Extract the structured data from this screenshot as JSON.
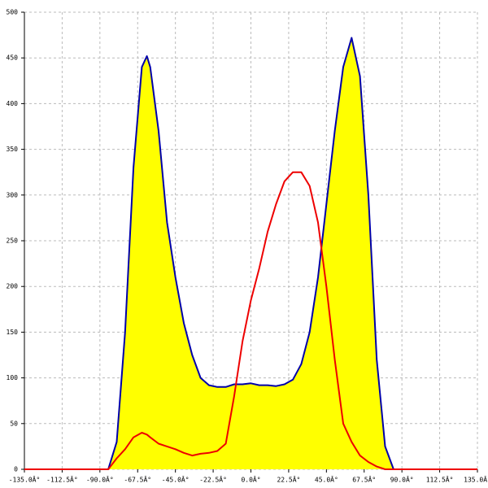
{
  "chart_data": {
    "type": "line",
    "x": [
      -135,
      -85,
      -80,
      -75,
      -70,
      -65,
      -62,
      -60,
      -55,
      -50,
      -45,
      -40,
      -35,
      -30,
      -25,
      -20,
      -15,
      -10,
      -5,
      0,
      5,
      10,
      15,
      20,
      25,
      30,
      35,
      40,
      45,
      50,
      55,
      60,
      65,
      70,
      75,
      80,
      85,
      135
    ],
    "series": [
      {
        "color": "#0000aa",
        "fill": "#ffff00",
        "values": [
          0,
          0,
          30,
          150,
          330,
          440,
          452,
          440,
          370,
          270,
          210,
          160,
          125,
          100,
          92,
          90,
          90,
          93,
          93,
          94,
          92,
          92,
          91,
          93,
          98,
          115,
          150,
          210,
          290,
          370,
          440,
          472,
          430,
          300,
          120,
          25,
          0,
          0
        ]
      },
      {
        "color": "#ee0000",
        "values": [
          0,
          0,
          12,
          22,
          35,
          40,
          38,
          35,
          28,
          25,
          22,
          18,
          15,
          17,
          18,
          20,
          28,
          80,
          140,
          185,
          220,
          260,
          290,
          315,
          325,
          325,
          310,
          270,
          200,
          120,
          50,
          30,
          15,
          8,
          3,
          0,
          0,
          0
        ]
      }
    ],
    "xlim": [
      -135,
      135
    ],
    "xticks": [
      {
        "value": -135,
        "label": "-135.0Â°"
      },
      {
        "value": -112.5,
        "label": "-112.5Â°"
      },
      {
        "value": -90,
        "label": "-90.0Â°"
      },
      {
        "value": -67.5,
        "label": "-67.5Â°"
      },
      {
        "value": -45,
        "label": "-45.0Â°"
      },
      {
        "value": -22.5,
        "label": "-22.5Â°"
      },
      {
        "value": 0,
        "label": "0.0Â°"
      },
      {
        "value": 22.5,
        "label": "22.5Â°"
      },
      {
        "value": 45,
        "label": "45.0Â°"
      },
      {
        "value": 67.5,
        "label": "67.5Â°"
      },
      {
        "value": 90,
        "label": "90.0Â°"
      },
      {
        "value": 112.5,
        "label": "112.5Â°"
      },
      {
        "value": 135,
        "label": "135.0Â°"
      }
    ],
    "ylim": [
      0,
      500
    ],
    "yticks": [
      0,
      50,
      100,
      150,
      200,
      250,
      300,
      350,
      400,
      450,
      500
    ],
    "grid": true
  }
}
